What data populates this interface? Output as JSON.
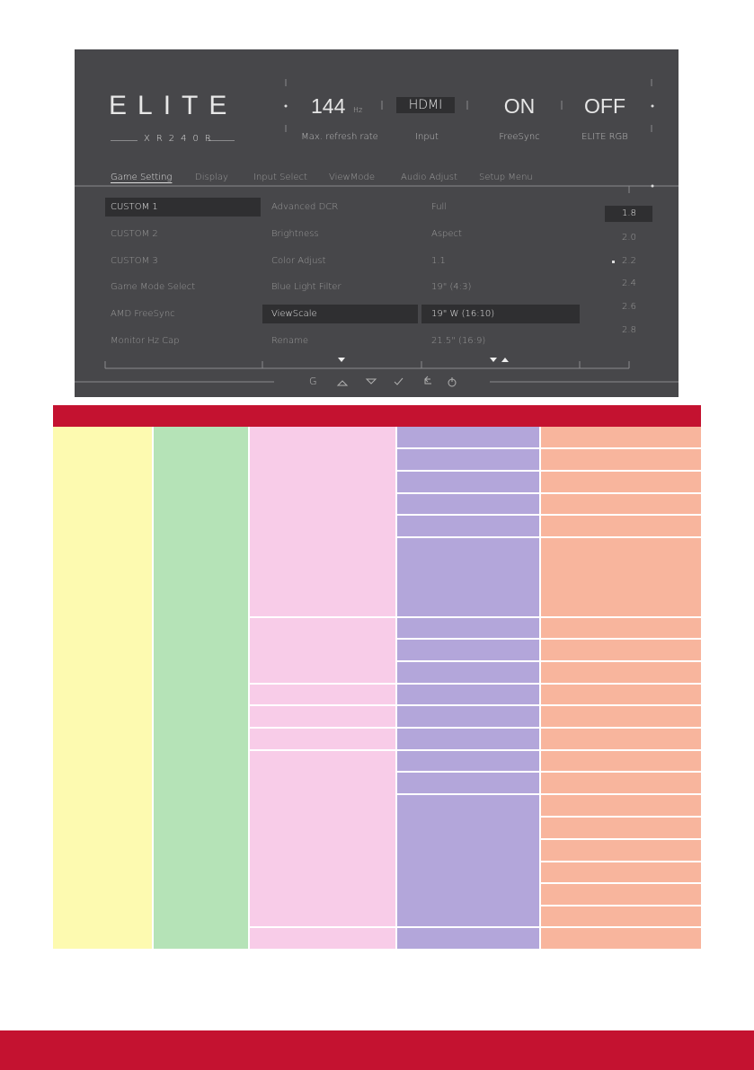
{
  "osd": {
    "logo": "ELITE",
    "model": "XR240R",
    "status": [
      {
        "value": "144",
        "unit": "Hz",
        "label": "Max. refresh rate"
      },
      {
        "value": "HDMI",
        "label": "Input"
      },
      {
        "value": "ON",
        "label": "FreeSync"
      },
      {
        "value": "OFF",
        "label": "ELITE RGB"
      }
    ],
    "tabs": [
      "Game Setting",
      "Display",
      "Input Select",
      "ViewMode",
      "Audio Adjust",
      "Setup Menu"
    ],
    "column1": [
      "CUSTOM 1",
      "CUSTOM 2",
      "CUSTOM 3",
      "Game Mode Select",
      "AMD FreeSync",
      "Monitor Hz Cap"
    ],
    "column2": [
      "Advanced DCR",
      "Brightness",
      "Color Adjust",
      "Blue Light Filter",
      "ViewScale",
      "Rename"
    ],
    "column3": [
      "Full",
      "Aspect",
      "1.1",
      "19\" (4:3)",
      "19\" W (16:10)",
      "21.5\" (16:9)"
    ],
    "column4": [
      "1.8",
      "2.0",
      "2.2",
      "2.4",
      "2.6",
      "2.8"
    ],
    "nav_key": "G"
  }
}
